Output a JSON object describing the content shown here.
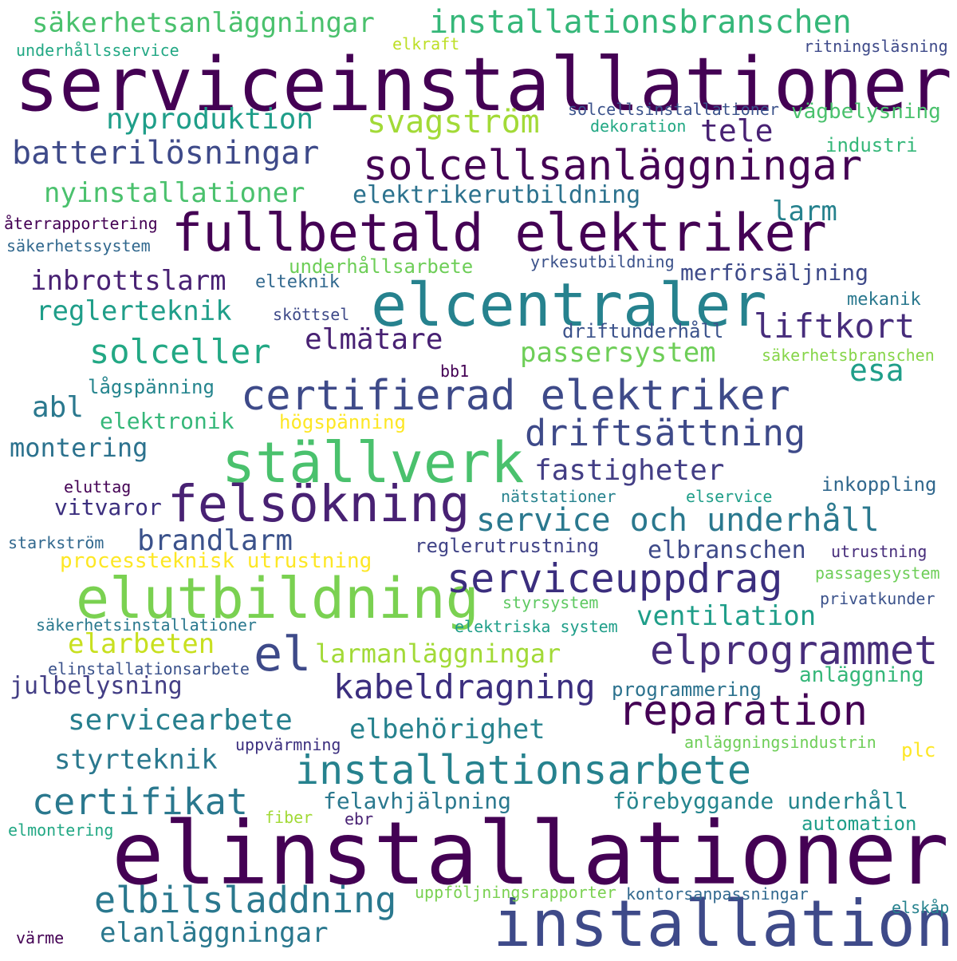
{
  "palette": {
    "deep_purple": "#440154",
    "indigo": "#3b2e7e",
    "slate_blue": "#3e4a89",
    "steel_blue": "#31688e",
    "teal": "#26828e",
    "sea_green": "#1f9e89",
    "green": "#35b779",
    "light_green": "#6ece58",
    "lime": "#b5de2b",
    "yellow": "#fde725"
  },
  "words": [
    {
      "text": "serviceinstallationer",
      "color": "#440154"
    },
    {
      "text": "elinstallationer",
      "color": "#440154"
    },
    {
      "text": "installation",
      "color": "#3e4a89"
    },
    {
      "text": "elcentraler",
      "color": "#26828e"
    },
    {
      "text": "fullbetald elektriker",
      "color": "#440154"
    },
    {
      "text": "ställverk",
      "color": "#4ac16d"
    },
    {
      "text": "elutbildning",
      "color": "#7ad151"
    },
    {
      "text": "felsökning",
      "color": "#482173"
    },
    {
      "text": "solcellsanläggningar",
      "color": "#440154"
    },
    {
      "text": "certifierad elektriker",
      "color": "#3e4a89"
    },
    {
      "text": "installationsarbete",
      "color": "#26828e"
    },
    {
      "text": "el",
      "color": "#3e4a89"
    },
    {
      "text": "reparation",
      "color": "#440154"
    },
    {
      "text": "elprogrammet",
      "color": "#472d7b"
    },
    {
      "text": "serviceuppdrag",
      "color": "#3b2e7e"
    },
    {
      "text": "driftsättning",
      "color": "#3e4a89"
    },
    {
      "text": "installationsbranschen",
      "color": "#35b779"
    },
    {
      "text": "solceller",
      "color": "#22a884"
    },
    {
      "text": "service och underhåll",
      "color": "#2a788e"
    },
    {
      "text": "batterilösningar",
      "color": "#3e4a89"
    },
    {
      "text": "liftkort",
      "color": "#472d7b"
    },
    {
      "text": "kabeldragning",
      "color": "#3b2e7e"
    },
    {
      "text": "elbilsladdning",
      "color": "#2a788e"
    },
    {
      "text": "certifikat",
      "color": "#2a788e"
    },
    {
      "text": "svagström",
      "color": "#a2da37"
    },
    {
      "text": "säkerhetsanläggningar",
      "color": "#4ac16d"
    },
    {
      "text": "nyinstallationer",
      "color": "#4ac16d"
    },
    {
      "text": "inbrottslarm",
      "color": "#482173"
    },
    {
      "text": "reglerteknik",
      "color": "#1f9e89"
    },
    {
      "text": "passersystem",
      "color": "#6ece58"
    },
    {
      "text": "elmätare",
      "color": "#482173"
    },
    {
      "text": "nyproduktion",
      "color": "#1f9e89"
    },
    {
      "text": "elanläggningar",
      "color": "#2a788e"
    },
    {
      "text": "servicearbete",
      "color": "#277f8e"
    },
    {
      "text": "brandlarm",
      "color": "#3b528b"
    },
    {
      "text": "fastigheter",
      "color": "#433e85"
    },
    {
      "text": "ventilation",
      "color": "#1f9e89"
    },
    {
      "text": "larmanläggningar",
      "color": "#a2da37"
    },
    {
      "text": "elbehörighet",
      "color": "#26828e"
    },
    {
      "text": "styrteknik",
      "color": "#2a788e"
    },
    {
      "text": "tele",
      "color": "#482173"
    },
    {
      "text": "esa",
      "color": "#1f9e89"
    },
    {
      "text": "elarbeten",
      "color": "#c8e020"
    },
    {
      "text": "elektrikerutbildning",
      "color": "#2c728e"
    },
    {
      "text": "montering",
      "color": "#2c728e"
    },
    {
      "text": "larm",
      "color": "#26828e"
    },
    {
      "text": "julbelysning",
      "color": "#433e85"
    },
    {
      "text": "förebyggande underhåll",
      "color": "#25858e"
    },
    {
      "text": "felavhjälpning",
      "color": "#2a788e"
    },
    {
      "text": "abl",
      "color": "#2a788e"
    },
    {
      "text": "elbranschen",
      "color": "#3e4a89"
    },
    {
      "text": "merförsäljning",
      "color": "#3e4a89"
    },
    {
      "text": "vitvaror",
      "color": "#3b2e7e"
    },
    {
      "text": "elektronik",
      "color": "#35b779"
    },
    {
      "text": "underhållsarbete",
      "color": "#6ece58"
    },
    {
      "text": "driftunderhåll",
      "color": "#3b528b"
    },
    {
      "text": "automation",
      "color": "#1f9e89"
    },
    {
      "text": "inkoppling",
      "color": "#31688e"
    },
    {
      "text": "vägbelysning",
      "color": "#4ac16d"
    },
    {
      "text": "industri",
      "color": "#35b779"
    },
    {
      "text": "anläggning",
      "color": "#35b779"
    },
    {
      "text": "programmering",
      "color": "#2c728e"
    },
    {
      "text": "processteknisk utrustning",
      "color": "#fde725"
    },
    {
      "text": "högspänning",
      "color": "#fde725"
    },
    {
      "text": "lågspänning",
      "color": "#25858e"
    },
    {
      "text": "reglerutrustning",
      "color": "#414487"
    },
    {
      "text": "plc",
      "color": "#fde725"
    },
    {
      "text": "mekanik",
      "color": "#2a788e"
    },
    {
      "text": "elteknik",
      "color": "#31688e"
    },
    {
      "text": "styrsystem",
      "color": "#5ec962"
    },
    {
      "text": "ritningsläsning",
      "color": "#3e4a89"
    },
    {
      "text": "underhållsservice",
      "color": "#22a884"
    },
    {
      "text": "solcellsinstallationer",
      "color": "#3b528b"
    },
    {
      "text": "yrkesutbildning",
      "color": "#3b528b"
    },
    {
      "text": "elektriska system",
      "color": "#1f9e89"
    },
    {
      "text": "kontorsanpassningar",
      "color": "#31688e"
    },
    {
      "text": "uppföljningsrapporter",
      "color": "#7ad151"
    },
    {
      "text": "anläggningsindustrin",
      "color": "#6ece58"
    },
    {
      "text": "säkerhetsinstallationer",
      "color": "#2a788e"
    },
    {
      "text": "elinstallationsarbete",
      "color": "#3b528b"
    },
    {
      "text": "säkerhetsbranschen",
      "color": "#86d549"
    },
    {
      "text": "passagesystem",
      "color": "#6ece58"
    },
    {
      "text": "privatkunder",
      "color": "#3b528b"
    },
    {
      "text": "utrustning",
      "color": "#472d7b"
    },
    {
      "text": "uppvärmning",
      "color": "#3b2e7e"
    },
    {
      "text": "elmontering",
      "color": "#22a884"
    },
    {
      "text": "återrapportering",
      "color": "#440154"
    },
    {
      "text": "säkerhetssystem",
      "color": "#31688e"
    },
    {
      "text": "starkström",
      "color": "#31688e"
    },
    {
      "text": "nätstationer",
      "color": "#26828e"
    },
    {
      "text": "elservice",
      "color": "#1f9e89"
    },
    {
      "text": "eluttag",
      "color": "#440154"
    },
    {
      "text": "bb1",
      "color": "#440154"
    },
    {
      "text": "sköttsel",
      "color": "#3e4a89"
    },
    {
      "text": "dekoration",
      "color": "#22a884"
    },
    {
      "text": "elkraft",
      "color": "#bddf26"
    },
    {
      "text": "fiber",
      "color": "#a2da37"
    },
    {
      "text": "ebr",
      "color": "#482173"
    },
    {
      "text": "elskåp",
      "color": "#26828e"
    },
    {
      "text": "värme",
      "color": "#440154"
    }
  ]
}
